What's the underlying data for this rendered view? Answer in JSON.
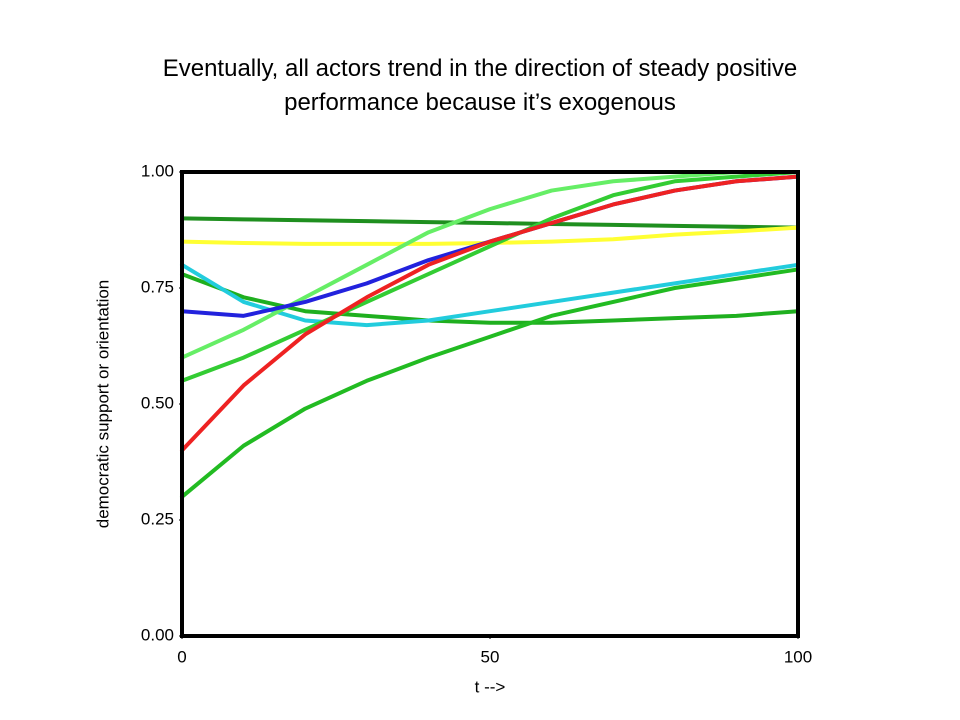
{
  "chart_data": {
    "type": "line",
    "title": "Eventually, all actors trend in the direction of steady positive performance because it’s exogenous",
    "xlabel": "t -->",
    "ylabel": "democratic support or orientation",
    "x": [
      0,
      10,
      20,
      30,
      40,
      50,
      60,
      70,
      80,
      90,
      100
    ],
    "xlim": [
      0,
      100
    ],
    "xticks": [
      0,
      50,
      100
    ],
    "ylim": [
      0,
      1
    ],
    "yticks": [
      {
        "value": 0,
        "label": "0.00"
      },
      {
        "value": 0.25,
        "label": "0.25"
      },
      {
        "value": 0.5,
        "label": "0.50"
      },
      {
        "value": 0.75,
        "label": "0.75"
      },
      {
        "value": 1,
        "label": "1.00"
      }
    ],
    "grid": false,
    "series": [
      {
        "color": "#1f8f1f",
        "values": [
          0.9,
          0.898,
          0.896,
          0.894,
          0.892,
          0.89,
          0.888,
          0.886,
          0.884,
          0.882,
          0.88
        ]
      },
      {
        "color": "#ffff33",
        "values": [
          0.85,
          0.847,
          0.845,
          0.845,
          0.845,
          0.847,
          0.85,
          0.855,
          0.865,
          0.872,
          0.88
        ]
      },
      {
        "color": "#1faf1f",
        "values": [
          0.78,
          0.73,
          0.7,
          0.69,
          0.68,
          0.675,
          0.675,
          0.68,
          0.685,
          0.69,
          0.7
        ]
      },
      {
        "color": "#22ccdd",
        "values": [
          0.8,
          0.72,
          0.68,
          0.67,
          0.68,
          0.7,
          0.72,
          0.74,
          0.76,
          0.78,
          0.8
        ]
      },
      {
        "color": "#22bb22",
        "values": [
          0.3,
          0.41,
          0.49,
          0.55,
          0.6,
          0.645,
          0.69,
          0.72,
          0.75,
          0.77,
          0.79
        ]
      },
      {
        "color": "#33cc33",
        "values": [
          0.55,
          0.6,
          0.66,
          0.72,
          0.78,
          0.84,
          0.9,
          0.95,
          0.98,
          0.99,
          1.0
        ]
      },
      {
        "color": "#66ee66",
        "values": [
          0.6,
          0.66,
          0.73,
          0.8,
          0.87,
          0.92,
          0.96,
          0.98,
          0.99,
          1.0,
          1.0
        ]
      },
      {
        "color": "#2222dd",
        "values": [
          0.7,
          0.69,
          0.72,
          0.76,
          0.81,
          0.85,
          0.89,
          0.93,
          0.96,
          0.98,
          0.99
        ]
      },
      {
        "color": "#ee2222",
        "values": [
          0.4,
          0.54,
          0.65,
          0.73,
          0.8,
          0.85,
          0.89,
          0.93,
          0.96,
          0.98,
          0.99
        ]
      }
    ]
  }
}
